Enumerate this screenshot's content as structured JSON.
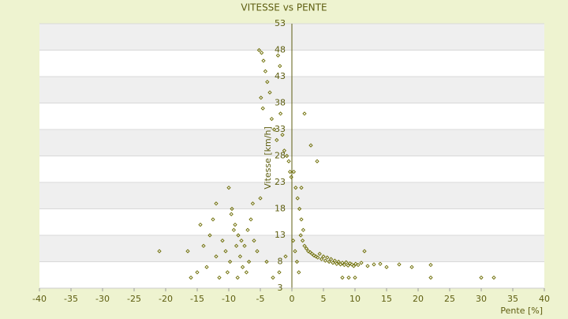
{
  "chart_data": {
    "type": "scatter",
    "title": "VITESSE vs PENTE",
    "x_label": "Pente [%]",
    "y_label": "Vitesse [km/h]",
    "color": "#6b6b00",
    "grid": true,
    "xlim": [
      -40,
      40
    ],
    "xticks": [
      -40,
      -35,
      -30,
      -25,
      -20,
      -15,
      -10,
      -5,
      0,
      5,
      10,
      15,
      20,
      25,
      30,
      35,
      40
    ],
    "ylim": [
      3,
      53
    ],
    "yticks": [
      3,
      8,
      13,
      18,
      23,
      28,
      33,
      38,
      43,
      48,
      53
    ],
    "x": [
      -5.2,
      -4.8,
      -4.5,
      -4.2,
      -3.9,
      -3.5,
      -2.2,
      -1.9,
      -4.9,
      -4.6,
      -3.2,
      -2.8,
      -2.4,
      -1.8,
      -1.5,
      -1.2,
      -0.8,
      -0.5,
      -0.3,
      -0.1,
      -10,
      -9.5,
      -9,
      -8.5,
      -8,
      -7.5,
      -7,
      -6.5,
      -6,
      -5.5,
      -14,
      -13,
      -12,
      -11,
      -10.5,
      -9.8,
      -9.2,
      -8.8,
      -8.2,
      -7.8,
      -15,
      -14.5,
      -13.5,
      -12.5,
      -11.5,
      -10.2,
      -9.6,
      -8.6,
      -7.2,
      -6.8,
      -16.5,
      -21,
      -16,
      -12,
      -6.2,
      -5,
      -4,
      -3,
      -2,
      -1,
      0.3,
      0.6,
      0.9,
      1.2,
      1.5,
      1.8,
      0.2,
      0.5,
      0.8,
      1.1,
      1.4,
      1.7,
      2,
      2.3,
      2.6,
      2.9,
      3.2,
      3.5,
      3.8,
      4.1,
      4.4,
      4.7,
      5,
      5.3,
      5.6,
      5.9,
      6.2,
      6.5,
      6.8,
      7.1,
      7.4,
      7.7,
      8,
      8.3,
      8.6,
      8.9,
      9.2,
      9.5,
      9.8,
      10.1,
      10.5,
      11,
      11.5,
      12,
      13,
      14,
      15,
      17,
      19,
      22,
      22,
      30,
      32,
      2,
      3,
      4,
      8,
      9,
      10,
      1.5
    ],
    "y": [
      48,
      47.5,
      46,
      44,
      42,
      40,
      47,
      45,
      39,
      37,
      35,
      33,
      31,
      36,
      32,
      29,
      28,
      27,
      25,
      24,
      22,
      18,
      15,
      13,
      12,
      11,
      14,
      16,
      12,
      10,
      11,
      13,
      9,
      12,
      10,
      8,
      14,
      11,
      9,
      7,
      6,
      15,
      7,
      16,
      5,
      6,
      17,
      5,
      6,
      8,
      10,
      10,
      5,
      19,
      19,
      20,
      8,
      5,
      6,
      9,
      25,
      22,
      20,
      18,
      16,
      14,
      12,
      10,
      8,
      6,
      13,
      12,
      11,
      10.5,
      10,
      9.8,
      9.5,
      9.2,
      9,
      8.8,
      9.5,
      8.5,
      9,
      8.2,
      8.8,
      8,
      8.5,
      7.8,
      8.2,
      7.6,
      8,
      7.5,
      7.8,
      7.4,
      7.9,
      7.3,
      7.7,
      7.5,
      7.2,
      7.6,
      7.4,
      7.8,
      10,
      7.2,
      7.5,
      7.6,
      7,
      7.5,
      7,
      7.4,
      5,
      5,
      5,
      36,
      30,
      27,
      5,
      5,
      5,
      22
    ]
  }
}
